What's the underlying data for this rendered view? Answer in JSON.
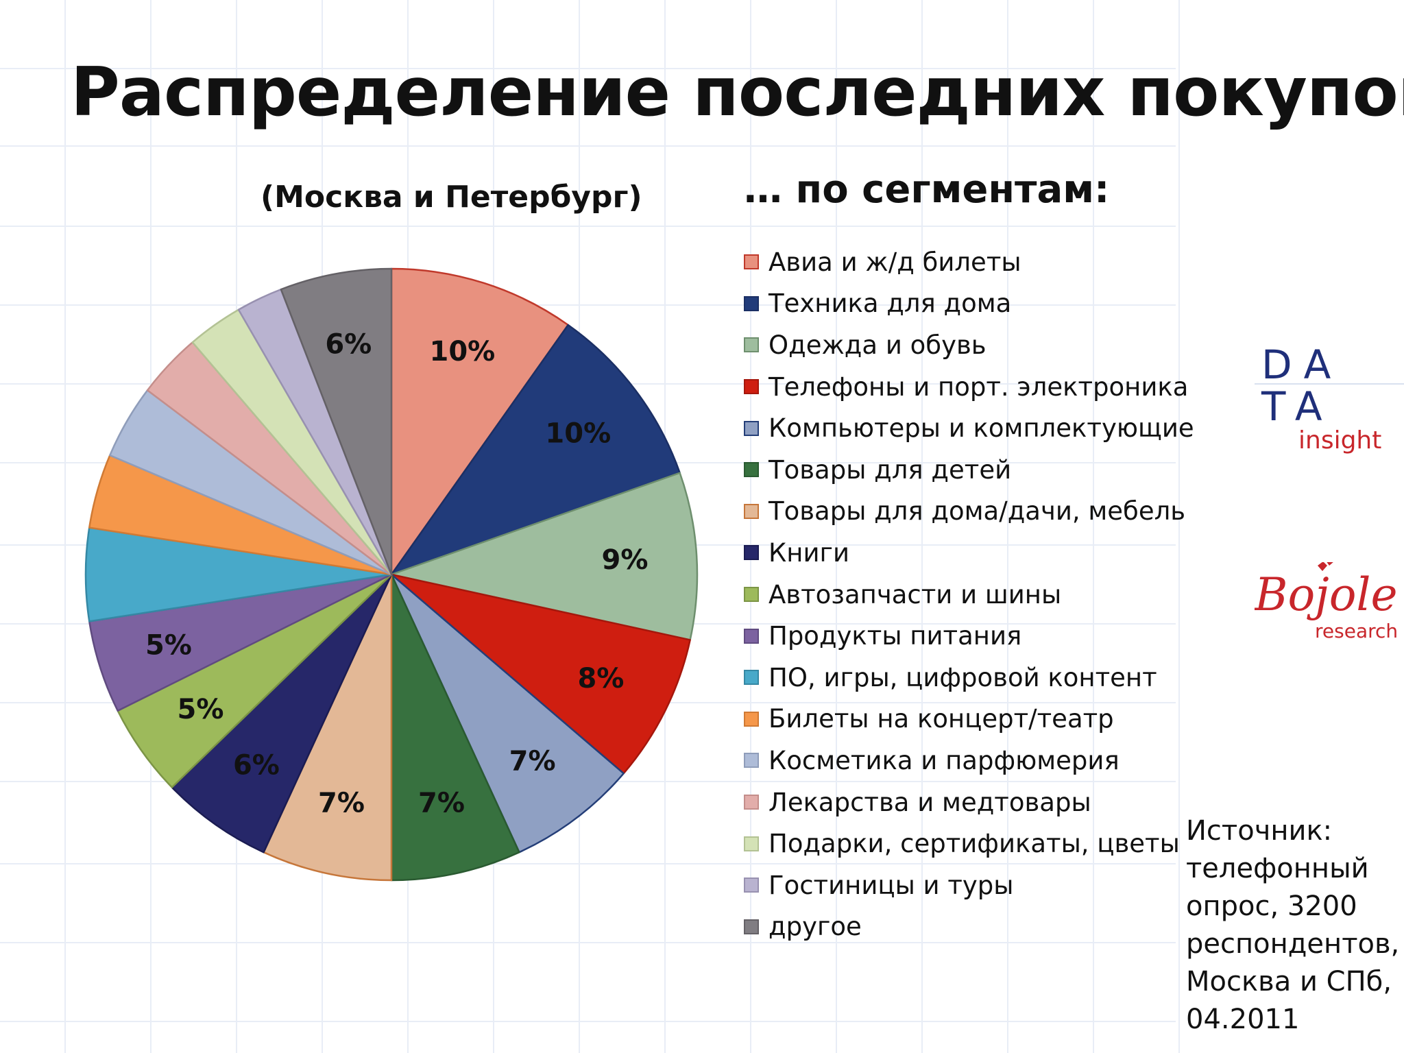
{
  "title": "Распределение последних покупок",
  "subtitle": "(Москва и Петербург)",
  "legend_title": "… по сегментам:",
  "source_note": "Источник: телефонный опрос, 3200 респондентов, Москва и СПб, 04.2011",
  "logos": {
    "data_insight": {
      "line1": "DA",
      "line2": "TA",
      "word": "insight",
      "blue": "#1f2f7a",
      "red": "#c8262b"
    },
    "bojole": {
      "script": "Bojole",
      "word": "research",
      "red": "#c8262b"
    }
  },
  "chart_data": {
    "type": "pie",
    "start_angle_deg": 0,
    "direction": "clockwise",
    "slices": [
      {
        "label": "Авиа и ж/д билеты",
        "value": 10,
        "data_label": "10%",
        "color": "#e8917f",
        "edge": "#c0392b"
      },
      {
        "label": "Техника для дома",
        "value": 10,
        "data_label": "10%",
        "color": "#213b7a",
        "edge": "#1b2f64"
      },
      {
        "label": "Одежда и обувь",
        "value": 9,
        "data_label": "9%",
        "color": "#9ebd9e",
        "edge": "#6e8f6e"
      },
      {
        "label": "Телефоны и порт. электроника",
        "value": 8,
        "data_label": "8%",
        "color": "#cf1e10",
        "edge": "#a5170c"
      },
      {
        "label": "Компьютеры и комплектующие",
        "value": 7,
        "data_label": "7%",
        "color": "#8fa0c3",
        "edge": "#243e78"
      },
      {
        "label": "Товары для детей",
        "value": 7,
        "data_label": "7%",
        "color": "#37713f",
        "edge": "#2a5a31"
      },
      {
        "label": "Товары для дома/дачи, мебель",
        "value": 7,
        "data_label": "7%",
        "color": "#e3b896",
        "edge": "#c6763a"
      },
      {
        "label": "Книги",
        "value": 6,
        "data_label": "6%",
        "color": "#262769",
        "edge": "#1b1c52"
      },
      {
        "label": "Автозапчасти и шины",
        "value": 5,
        "data_label": "5%",
        "color": "#9dba5b",
        "edge": "#7c9546"
      },
      {
        "label": "Продукты питания",
        "value": 5,
        "data_label": "5%",
        "color": "#7c62a0",
        "edge": "#604b80"
      },
      {
        "label": "ПО, игры, цифровой контент",
        "value": 5,
        "data_label": "",
        "color": "#48a9c9",
        "edge": "#3588a4"
      },
      {
        "label": "Билеты на концерт/театр",
        "value": 4,
        "data_label": "",
        "color": "#f5974a",
        "edge": "#d07a34"
      },
      {
        "label": "Косметика и парфюмерия",
        "value": 4,
        "data_label": "",
        "color": "#aebcd8",
        "edge": "#8f9dba"
      },
      {
        "label": "Лекарства и медтовары",
        "value": 3.5,
        "data_label": "",
        "color": "#e2adaa",
        "edge": "#c48e8b"
      },
      {
        "label": "Подарки, сертификаты, цветы",
        "value": 3,
        "data_label": "",
        "color": "#d4e2b6",
        "edge": "#b3c294"
      },
      {
        "label": "Гостиницы и туры",
        "value": 2.5,
        "data_label": "",
        "color": "#b9b3d0",
        "edge": "#9891b0"
      },
      {
        "label": "другое",
        "value": 6,
        "data_label": "6%",
        "color": "#807d82",
        "edge": "#646166"
      }
    ]
  }
}
